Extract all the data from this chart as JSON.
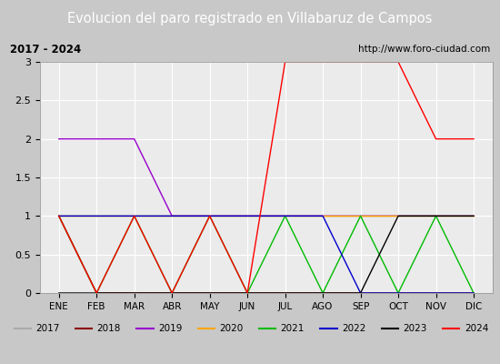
{
  "title": "Evolucion del paro registrado en Villabaruz de Campos",
  "title_color": "#ffffff",
  "title_bg": "#4472c4",
  "subtitle_left": "2017 - 2024",
  "subtitle_right": "http://www.foro-ciudad.com",
  "xlabel_months": [
    "ENE",
    "FEB",
    "MAR",
    "ABR",
    "MAY",
    "JUN",
    "JUL",
    "AGO",
    "SEP",
    "OCT",
    "NOV",
    "DIC"
  ],
  "ylim": [
    0.0,
    3.0
  ],
  "yticks": [
    0.0,
    0.5,
    1.0,
    1.5,
    2.0,
    2.5,
    3.0
  ],
  "bg_plot": "#ebebeb",
  "bg_figure": "#c8c8c8",
  "bg_subtitle": "#f0f0f0",
  "grid_color": "#ffffff",
  "series": {
    "2017": {
      "color": "#aaaaaa",
      "data": [
        1,
        1,
        1,
        1,
        1,
        1,
        1,
        1,
        1,
        1,
        1,
        1
      ]
    },
    "2018": {
      "color": "#8b0000",
      "data": [
        1,
        0,
        0,
        0,
        0,
        0,
        0,
        0,
        0,
        0,
        0,
        0
      ]
    },
    "2019": {
      "color": "#9900cc",
      "data": [
        2,
        2,
        2,
        1,
        1,
        1,
        1,
        1,
        1,
        1,
        1,
        1
      ]
    },
    "2020": {
      "color": "#ffa500",
      "data": [
        1,
        1,
        1,
        1,
        1,
        1,
        1,
        1,
        1,
        1,
        1,
        1
      ]
    },
    "2021": {
      "color": "#00bb00",
      "data": [
        1,
        0,
        1,
        0,
        1,
        0,
        1,
        0,
        1,
        0,
        1,
        0
      ]
    },
    "2022": {
      "color": "#0000cc",
      "data": [
        1,
        1,
        1,
        1,
        1,
        1,
        1,
        1,
        0,
        0,
        0,
        0
      ]
    },
    "2023": {
      "color": "#000000",
      "data": [
        0,
        0,
        0,
        0,
        0,
        0,
        0,
        0,
        0,
        1,
        1,
        1
      ]
    },
    "2024": {
      "color": "#ff0000",
      "data": [
        1,
        0,
        1,
        0,
        1,
        0,
        3,
        3,
        3,
        3,
        2,
        2
      ]
    }
  },
  "legend_order": [
    "2017",
    "2018",
    "2019",
    "2020",
    "2021",
    "2022",
    "2023",
    "2024"
  ]
}
